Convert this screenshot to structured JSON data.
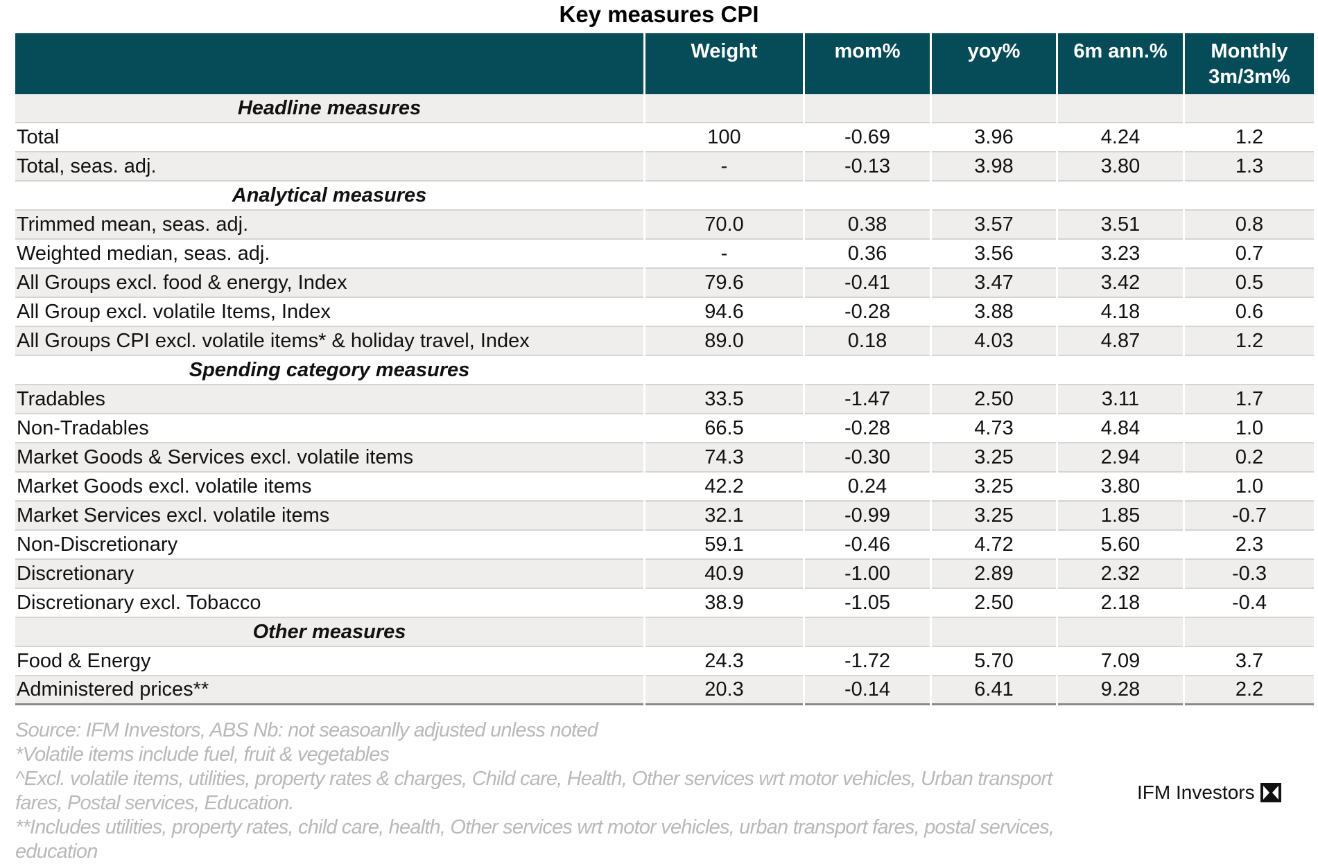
{
  "title": "Key measures CPI",
  "table": {
    "header": [
      "Weight",
      "mom%",
      "yoy%",
      "6m ann.%",
      "Monthly 3m/3m%"
    ],
    "sections": [
      {
        "title": "Headline measures",
        "rows": [
          {
            "label": "Total",
            "values": [
              "100",
              "-0.69",
              "3.96",
              "4.24",
              "1.2"
            ]
          },
          {
            "label": "Total, seas. adj.",
            "values": [
              "-",
              "-0.13",
              "3.98",
              "3.80",
              "1.3"
            ]
          }
        ]
      },
      {
        "title": "Analytical measures",
        "rows": [
          {
            "label": "Trimmed mean, seas. adj.",
            "values": [
              "70.0",
              "0.38",
              "3.57",
              "3.51",
              "0.8"
            ]
          },
          {
            "label": "Weighted median, seas. adj.",
            "values": [
              "-",
              "0.36",
              "3.56",
              "3.23",
              "0.7"
            ]
          },
          {
            "label": "All Groups excl. food & energy, Index",
            "values": [
              "79.6",
              "-0.41",
              "3.47",
              "3.42",
              "0.5"
            ]
          },
          {
            "label": "All Group excl. volatile Items, Index",
            "values": [
              "94.6",
              "-0.28",
              "3.88",
              "4.18",
              "0.6"
            ]
          },
          {
            "label": "All Groups CPI excl. volatile items* & holiday travel, Index",
            "values": [
              "89.0",
              "0.18",
              "4.03",
              "4.87",
              "1.2"
            ]
          }
        ]
      },
      {
        "title": "Spending category measures",
        "rows": [
          {
            "label": "Tradables",
            "values": [
              "33.5",
              "-1.47",
              "2.50",
              "3.11",
              "1.7"
            ]
          },
          {
            "label": "Non-Tradables",
            "values": [
              "66.5",
              "-0.28",
              "4.73",
              "4.84",
              "1.0"
            ]
          },
          {
            "label": "Market Goods & Services excl. volatile items",
            "values": [
              "74.3",
              "-0.30",
              "3.25",
              "2.94",
              "0.2"
            ]
          },
          {
            "label": "Market Goods excl. volatile items",
            "values": [
              "42.2",
              "0.24",
              "3.25",
              "3.80",
              "1.0"
            ]
          },
          {
            "label": "Market Services excl. volatile items",
            "values": [
              "32.1",
              "-0.99",
              "3.25",
              "1.85",
              "-0.7"
            ]
          },
          {
            "label": "Non-Discretionary",
            "values": [
              "59.1",
              "-0.46",
              "4.72",
              "5.60",
              "2.3"
            ]
          },
          {
            "label": "Discretionary",
            "values": [
              "40.9",
              "-1.00",
              "2.89",
              "2.32",
              "-0.3"
            ]
          },
          {
            "label": "Discretionary excl. Tobacco",
            "values": [
              "38.9",
              "-1.05",
              "2.50",
              "2.18",
              "-0.4"
            ]
          }
        ]
      },
      {
        "title": "Other measures",
        "rows": [
          {
            "label": "Food & Energy",
            "values": [
              "24.3",
              "-1.72",
              "5.70",
              "7.09",
              "3.7"
            ]
          },
          {
            "label": "Administered prices**",
            "values": [
              "20.3",
              "-0.14",
              "6.41",
              "9.28",
              "2.2"
            ]
          }
        ]
      }
    ]
  },
  "footnotes": [
    "Source: IFM Investors, ABS  Nb: not seasoanlly adjusted unless noted",
    "*Volatile items include fuel, fruit & vegetables",
    "^Excl. volatile items, utilities, property rates & charges, Child care, Health, Other services wrt motor vehicles, Urban transport fares, Postal services, Education.",
    "**Includes utilities, property rates, child care, health, Other services wrt motor vehicles, urban transport fares, postal services, education"
  ],
  "logo": "IFM Investors"
}
